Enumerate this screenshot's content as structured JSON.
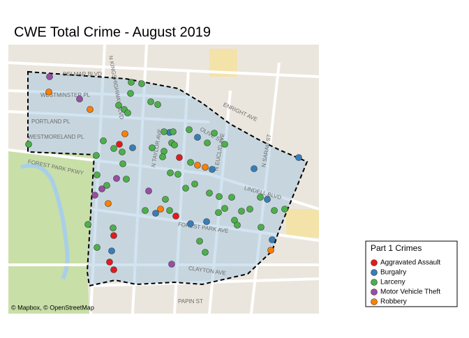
{
  "chart_data": {
    "type": "scatter",
    "title": "CWE Total Crime - August 2019",
    "attribution": "© Mapbox, © OpenStreetMap",
    "legend_title": "Part 1 Crimes",
    "xlim": [
      -90.28,
      -90.2355
    ],
    "ylim": [
      38.6214,
      38.66
    ],
    "map_labels": [
      "DELMAR BLVD",
      "WESTMINSTER PL",
      "PORTLAND PL",
      "WESTMORELAND PL",
      "FOREST PARK PKWY",
      "N KINGSHIGHWAY BLVD",
      "ENRIGHT AVE",
      "OLIVE ST",
      "N TAYLOR AVE",
      "N EUCLID AVE",
      "N SARAH ST",
      "LINDELL BLVD",
      "FOREST PARK AVE",
      "CLAYTON AVE",
      "PAPIN ST"
    ],
    "series": [
      {
        "name": "Aggravated Assault",
        "color": "#e41a1c",
        "x": [
          -90.2641,
          -90.2555,
          -90.256,
          -90.2649,
          -90.2655,
          -90.2649
        ],
        "values": [
          38.6457,
          38.6438,
          38.6354,
          38.6326,
          38.6288,
          38.6277
        ]
      },
      {
        "name": "Burgalry",
        "color": "#377eb8",
        "x": [
          -90.2569,
          -90.2622,
          -90.2529,
          -90.2508,
          -90.2448,
          -90.2384,
          -90.2429,
          -90.2589,
          -90.2516,
          -90.2539,
          -90.2422,
          -90.2652
        ],
        "values": [
          38.6474,
          38.6452,
          38.6467,
          38.6421,
          38.6422,
          38.6438,
          38.6378,
          38.6358,
          38.6346,
          38.6343,
          38.632,
          38.6304
        ]
      },
      {
        "name": "Larceny",
        "color": "#4daf4a",
        "x": [
          -90.2624,
          -90.2609,
          -90.2625,
          -90.2642,
          -90.2634,
          -90.2629,
          -90.2596,
          -90.2586,
          -90.2577,
          -90.2564,
          -90.2664,
          -90.2594,
          -90.2649,
          -90.2637,
          -90.2577,
          -90.2579,
          -90.2566,
          -90.2562,
          -90.2541,
          -90.2505,
          -90.2515,
          -90.249,
          -90.2539,
          -90.2771,
          -90.2674,
          -90.2636,
          -90.2673,
          -90.2631,
          -90.2659,
          -90.2568,
          -90.2557,
          -90.2533,
          -90.2546,
          -90.2512,
          -90.2498,
          -90.248,
          -90.2439,
          -90.2454,
          -90.249,
          -90.2499,
          -90.2604,
          -90.2569,
          -90.2466,
          -90.2419,
          -90.2404,
          -90.2476,
          -90.2472,
          -90.2438,
          -90.2686,
          -90.265,
          -90.2526,
          -90.2673,
          -90.2518,
          -90.2575
        ],
        "values": [
          38.6546,
          38.6544,
          38.653,
          38.6513,
          38.6507,
          38.6502,
          38.6518,
          38.6514,
          38.6475,
          38.6475,
          38.6462,
          38.6452,
          38.6451,
          38.6446,
          38.6447,
          38.6439,
          38.6459,
          38.6456,
          38.6478,
          38.6473,
          38.6459,
          38.6457,
          38.6431,
          38.6457,
          38.6441,
          38.6429,
          38.6413,
          38.6407,
          38.6398,
          38.6416,
          38.6414,
          38.64,
          38.6394,
          38.6387,
          38.6382,
          38.6381,
          38.6381,
          38.6364,
          38.6365,
          38.6359,
          38.6362,
          38.6362,
          38.6361,
          38.6362,
          38.6364,
          38.6348,
          38.6341,
          38.6338,
          38.6342,
          38.6337,
          38.6318,
          38.6309,
          38.6302,
          38.6378
        ]
      },
      {
        "name": "Motor Vehicle Theft",
        "color": "#984ea3",
        "x": [
          -90.2741,
          -90.2698,
          -90.2645,
          -90.2666,
          -90.2676,
          -90.2599,
          -90.2566
        ],
        "values": [
          38.6554,
          38.6522,
          38.6408,
          38.6393,
          38.6384,
          38.639,
          38.6285
        ]
      },
      {
        "name": "Robbery",
        "color": "#ff7f00",
        "x": [
          -90.2742,
          -90.2683,
          -90.2633,
          -90.2657,
          -90.2582,
          -90.2529,
          -90.2518,
          -90.2424
        ],
        "values": [
          38.6532,
          38.6507,
          38.6472,
          38.6372,
          38.6364,
          38.6427,
          38.6424,
          38.6305
        ]
      }
    ]
  }
}
